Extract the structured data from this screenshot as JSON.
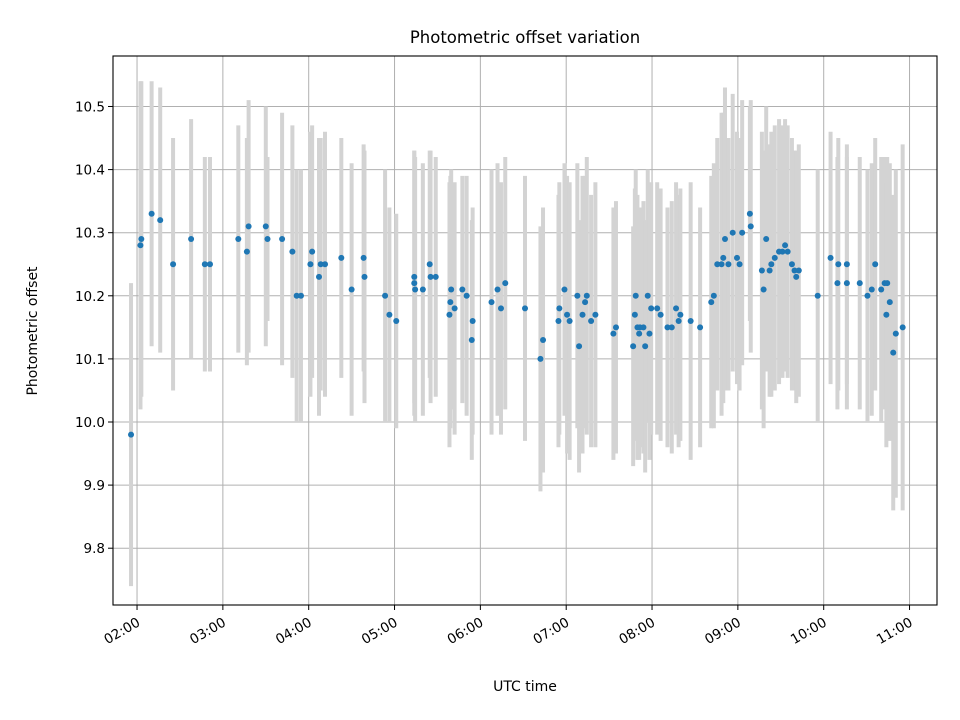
{
  "chart_data": {
    "type": "scatter",
    "title": "Photometric offset variation",
    "xlabel": "UTC time",
    "ylabel": "Photometric offset",
    "x_unit": "hours (UTC)",
    "xlim": [
      1.72,
      11.32
    ],
    "ylim": [
      9.71,
      10.58
    ],
    "grid": true,
    "x_ticks": [
      {
        "value": 2,
        "label": "02:00"
      },
      {
        "value": 3,
        "label": "03:00"
      },
      {
        "value": 4,
        "label": "04:00"
      },
      {
        "value": 5,
        "label": "05:00"
      },
      {
        "value": 6,
        "label": "06:00"
      },
      {
        "value": 7,
        "label": "07:00"
      },
      {
        "value": 8,
        "label": "08:00"
      },
      {
        "value": 9,
        "label": "09:00"
      },
      {
        "value": 10,
        "label": "10:00"
      },
      {
        "value": 11,
        "label": "11:00"
      }
    ],
    "y_ticks": [
      {
        "value": 9.8,
        "label": "9.8"
      },
      {
        "value": 9.9,
        "label": "9.9"
      },
      {
        "value": 10.0,
        "label": "10.0"
      },
      {
        "value": 10.1,
        "label": "10.1"
      },
      {
        "value": 10.2,
        "label": "10.2"
      },
      {
        "value": 10.3,
        "label": "10.3"
      },
      {
        "value": 10.4,
        "label": "10.4"
      },
      {
        "value": 10.5,
        "label": "10.5"
      }
    ],
    "colors": {
      "marker": "#1f77b4",
      "error_bar": "#d3d3d3",
      "grid": "#b0b0b0"
    },
    "series": [
      {
        "points": [
          [
            1.93,
            9.98,
            0.24
          ],
          [
            2.05,
            10.29,
            0.25
          ],
          [
            2.04,
            10.28,
            0.26
          ],
          [
            2.17,
            10.33,
            0.21
          ],
          [
            2.27,
            10.32,
            0.21
          ],
          [
            2.42,
            10.25,
            0.2
          ],
          [
            2.63,
            10.29,
            0.19
          ],
          [
            2.79,
            10.25,
            0.17
          ],
          [
            2.85,
            10.25,
            0.17
          ],
          [
            3.18,
            10.29,
            0.18
          ],
          [
            3.28,
            10.27,
            0.18
          ],
          [
            3.3,
            10.31,
            0.2
          ],
          [
            3.5,
            10.31,
            0.19
          ],
          [
            3.52,
            10.29,
            0.13
          ],
          [
            3.69,
            10.29,
            0.2
          ],
          [
            3.81,
            10.27,
            0.2
          ],
          [
            3.86,
            10.2,
            0.2
          ],
          [
            3.91,
            10.2,
            0.2
          ],
          [
            4.02,
            10.25,
            0.21
          ],
          [
            4.04,
            10.27,
            0.2
          ],
          [
            4.12,
            10.23,
            0.22
          ],
          [
            4.14,
            10.25,
            0.2
          ],
          [
            4.19,
            10.25,
            0.21
          ],
          [
            4.38,
            10.26,
            0.19
          ],
          [
            4.5,
            10.21,
            0.2
          ],
          [
            4.64,
            10.26,
            0.18
          ],
          [
            4.65,
            10.23,
            0.2
          ],
          [
            4.89,
            10.2,
            0.2
          ],
          [
            4.94,
            10.17,
            0.17
          ],
          [
            5.02,
            10.16,
            0.17
          ],
          [
            5.23,
            10.22,
            0.21
          ],
          [
            5.23,
            10.23,
            0.2
          ],
          [
            5.24,
            10.21,
            0.21
          ],
          [
            5.33,
            10.21,
            0.2
          ],
          [
            5.41,
            10.25,
            0.18
          ],
          [
            5.42,
            10.23,
            0.2
          ],
          [
            5.48,
            10.23,
            0.19
          ],
          [
            5.64,
            10.17,
            0.21
          ],
          [
            5.65,
            10.19,
            0.2
          ],
          [
            5.66,
            10.21,
            0.19
          ],
          [
            5.7,
            10.18,
            0.2
          ],
          [
            5.79,
            10.21,
            0.18
          ],
          [
            5.84,
            10.2,
            0.19
          ],
          [
            5.9,
            10.13,
            0.19
          ],
          [
            5.91,
            10.16,
            0.18
          ],
          [
            6.13,
            10.19,
            0.21
          ],
          [
            6.2,
            10.21,
            0.2
          ],
          [
            6.24,
            10.18,
            0.2
          ],
          [
            6.29,
            10.22,
            0.2
          ],
          [
            6.52,
            10.18,
            0.21
          ],
          [
            6.7,
            10.1,
            0.21
          ],
          [
            6.73,
            10.13,
            0.21
          ],
          [
            6.91,
            10.16,
            0.2
          ],
          [
            6.92,
            10.18,
            0.2
          ],
          [
            6.98,
            10.21,
            0.2
          ],
          [
            7.01,
            10.17,
            0.22
          ],
          [
            7.04,
            10.16,
            0.22
          ],
          [
            7.13,
            10.2,
            0.21
          ],
          [
            7.15,
            10.12,
            0.2
          ],
          [
            7.19,
            10.17,
            0.22
          ],
          [
            7.22,
            10.19,
            0.2
          ],
          [
            7.24,
            10.2,
            0.22
          ],
          [
            7.29,
            10.16,
            0.2
          ],
          [
            7.34,
            10.17,
            0.21
          ],
          [
            7.55,
            10.14,
            0.2
          ],
          [
            7.58,
            10.15,
            0.2
          ],
          [
            7.78,
            10.12,
            0.19
          ],
          [
            7.8,
            10.17,
            0.2
          ],
          [
            7.81,
            10.2,
            0.2
          ],
          [
            7.83,
            10.15,
            0.21
          ],
          [
            7.85,
            10.14,
            0.2
          ],
          [
            7.86,
            10.15,
            0.19
          ],
          [
            7.9,
            10.15,
            0.2
          ],
          [
            7.92,
            10.12,
            0.2
          ],
          [
            7.95,
            10.2,
            0.2
          ],
          [
            7.97,
            10.14,
            0.2
          ],
          [
            7.99,
            10.18,
            0.2
          ],
          [
            8.06,
            10.18,
            0.2
          ],
          [
            8.1,
            10.17,
            0.2
          ],
          [
            8.18,
            10.15,
            0.19
          ],
          [
            8.23,
            10.15,
            0.2
          ],
          [
            8.28,
            10.18,
            0.2
          ],
          [
            8.31,
            10.16,
            0.2
          ],
          [
            8.33,
            10.17,
            0.2
          ],
          [
            8.45,
            10.16,
            0.22
          ],
          [
            8.56,
            10.15,
            0.19
          ],
          [
            8.69,
            10.19,
            0.2
          ],
          [
            8.72,
            10.2,
            0.21
          ],
          [
            8.76,
            10.25,
            0.2
          ],
          [
            8.81,
            10.25,
            0.24
          ],
          [
            8.83,
            10.26,
            0.23
          ],
          [
            8.85,
            10.29,
            0.24
          ],
          [
            8.89,
            10.25,
            0.2
          ],
          [
            8.94,
            10.3,
            0.22
          ],
          [
            8.99,
            10.26,
            0.2
          ],
          [
            9.02,
            10.25,
            0.2
          ],
          [
            9.05,
            10.3,
            0.21
          ],
          [
            9.14,
            10.33,
            0.17
          ],
          [
            9.15,
            10.31,
            0.2
          ],
          [
            9.28,
            10.24,
            0.22
          ],
          [
            9.3,
            10.21,
            0.22
          ],
          [
            9.33,
            10.29,
            0.21
          ],
          [
            9.37,
            10.24,
            0.2
          ],
          [
            9.39,
            10.25,
            0.21
          ],
          [
            9.43,
            10.26,
            0.21
          ],
          [
            9.48,
            10.27,
            0.21
          ],
          [
            9.52,
            10.27,
            0.2
          ],
          [
            9.55,
            10.28,
            0.2
          ],
          [
            9.58,
            10.27,
            0.2
          ],
          [
            9.63,
            10.25,
            0.2
          ],
          [
            9.66,
            10.24,
            0.19
          ],
          [
            9.68,
            10.23,
            0.2
          ],
          [
            9.71,
            10.24,
            0.2
          ],
          [
            9.93,
            10.2,
            0.2
          ],
          [
            10.08,
            10.26,
            0.2
          ],
          [
            10.16,
            10.22,
            0.2
          ],
          [
            10.17,
            10.25,
            0.2
          ],
          [
            10.27,
            10.22,
            0.2
          ],
          [
            10.27,
            10.25,
            0.19
          ],
          [
            10.42,
            10.22,
            0.2
          ],
          [
            10.51,
            10.2,
            0.2
          ],
          [
            10.56,
            10.21,
            0.2
          ],
          [
            10.6,
            10.25,
            0.2
          ],
          [
            10.67,
            10.21,
            0.21
          ],
          [
            10.71,
            10.22,
            0.2
          ],
          [
            10.73,
            10.17,
            0.21
          ],
          [
            10.74,
            10.22,
            0.2
          ],
          [
            10.77,
            10.19,
            0.22
          ],
          [
            10.81,
            10.11,
            0.25
          ],
          [
            10.84,
            10.14,
            0.26
          ],
          [
            10.92,
            10.15,
            0.29
          ]
        ]
      }
    ]
  }
}
